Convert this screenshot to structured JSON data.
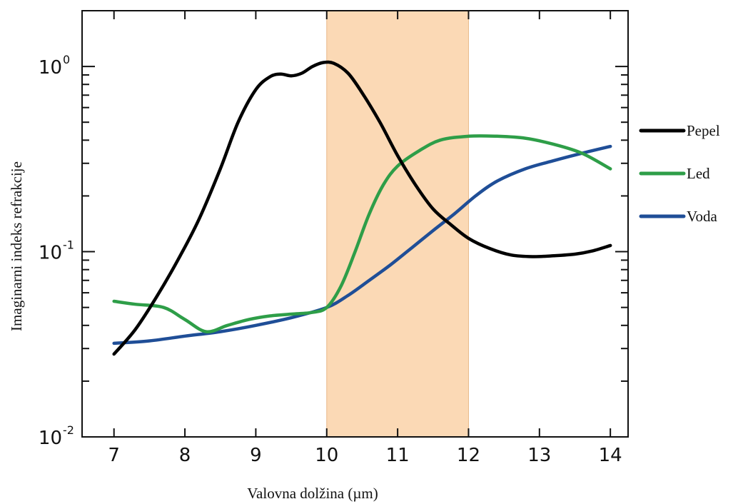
{
  "chart_data": {
    "type": "line",
    "title": "",
    "xlabel": "Valovna dolžina (µm)",
    "ylabel": "Imaginarni indeks refrakcije",
    "y_scale": "log",
    "xlim": [
      6.55,
      14.25
    ],
    "ylim": [
      0.01,
      2.0
    ],
    "x_ticks": [
      "7",
      "8",
      "9",
      "10",
      "11",
      "12",
      "13",
      "14"
    ],
    "y_ticks": [
      {
        "value": 1,
        "base": "10",
        "exp": "0"
      },
      {
        "value": 0.1,
        "base": "10",
        "exp": "-1"
      },
      {
        "value": 0.01,
        "base": "10",
        "exp": "-2"
      }
    ],
    "highlight_band": {
      "x_start": 10,
      "x_end": 12,
      "color": "#FBD9B5"
    },
    "legend_position": "right",
    "series": [
      {
        "name": "Pepel",
        "color": "#000000",
        "points": [
          [
            7.0,
            0.028
          ],
          [
            7.3,
            0.038
          ],
          [
            7.6,
            0.057
          ],
          [
            7.9,
            0.09
          ],
          [
            8.2,
            0.15
          ],
          [
            8.5,
            0.28
          ],
          [
            8.75,
            0.5
          ],
          [
            9.0,
            0.75
          ],
          [
            9.2,
            0.88
          ],
          [
            9.35,
            0.91
          ],
          [
            9.5,
            0.89
          ],
          [
            9.65,
            0.92
          ],
          [
            9.8,
            1.0
          ],
          [
            9.95,
            1.05
          ],
          [
            10.1,
            1.04
          ],
          [
            10.3,
            0.92
          ],
          [
            10.5,
            0.72
          ],
          [
            10.75,
            0.5
          ],
          [
            11.0,
            0.33
          ],
          [
            11.25,
            0.23
          ],
          [
            11.5,
            0.17
          ],
          [
            11.75,
            0.14
          ],
          [
            12.0,
            0.118
          ],
          [
            12.3,
            0.104
          ],
          [
            12.6,
            0.096
          ],
          [
            12.9,
            0.094
          ],
          [
            13.2,
            0.095
          ],
          [
            13.5,
            0.097
          ],
          [
            13.75,
            0.101
          ],
          [
            14.0,
            0.108
          ]
        ]
      },
      {
        "name": "Led",
        "color": "#2E9E48",
        "points": [
          [
            7.0,
            0.054
          ],
          [
            7.3,
            0.052
          ],
          [
            7.7,
            0.05
          ],
          [
            8.0,
            0.043
          ],
          [
            8.3,
            0.037
          ],
          [
            8.6,
            0.04
          ],
          [
            8.9,
            0.043
          ],
          [
            9.2,
            0.045
          ],
          [
            9.5,
            0.046
          ],
          [
            9.8,
            0.047
          ],
          [
            10.0,
            0.05
          ],
          [
            10.2,
            0.065
          ],
          [
            10.4,
            0.1
          ],
          [
            10.6,
            0.16
          ],
          [
            10.8,
            0.23
          ],
          [
            11.0,
            0.29
          ],
          [
            11.3,
            0.35
          ],
          [
            11.6,
            0.4
          ],
          [
            12.0,
            0.42
          ],
          [
            12.4,
            0.42
          ],
          [
            12.8,
            0.41
          ],
          [
            13.2,
            0.38
          ],
          [
            13.6,
            0.34
          ],
          [
            14.0,
            0.28
          ]
        ]
      },
      {
        "name": "Voda",
        "color": "#1F4E97",
        "points": [
          [
            7.0,
            0.032
          ],
          [
            7.5,
            0.033
          ],
          [
            8.0,
            0.035
          ],
          [
            8.5,
            0.037
          ],
          [
            9.0,
            0.04
          ],
          [
            9.5,
            0.044
          ],
          [
            10.0,
            0.05
          ],
          [
            10.3,
            0.058
          ],
          [
            10.6,
            0.07
          ],
          [
            10.9,
            0.085
          ],
          [
            11.2,
            0.105
          ],
          [
            11.5,
            0.13
          ],
          [
            11.8,
            0.16
          ],
          [
            12.1,
            0.2
          ],
          [
            12.4,
            0.24
          ],
          [
            12.8,
            0.28
          ],
          [
            13.2,
            0.31
          ],
          [
            13.6,
            0.34
          ],
          [
            14.0,
            0.37
          ]
        ]
      }
    ]
  }
}
